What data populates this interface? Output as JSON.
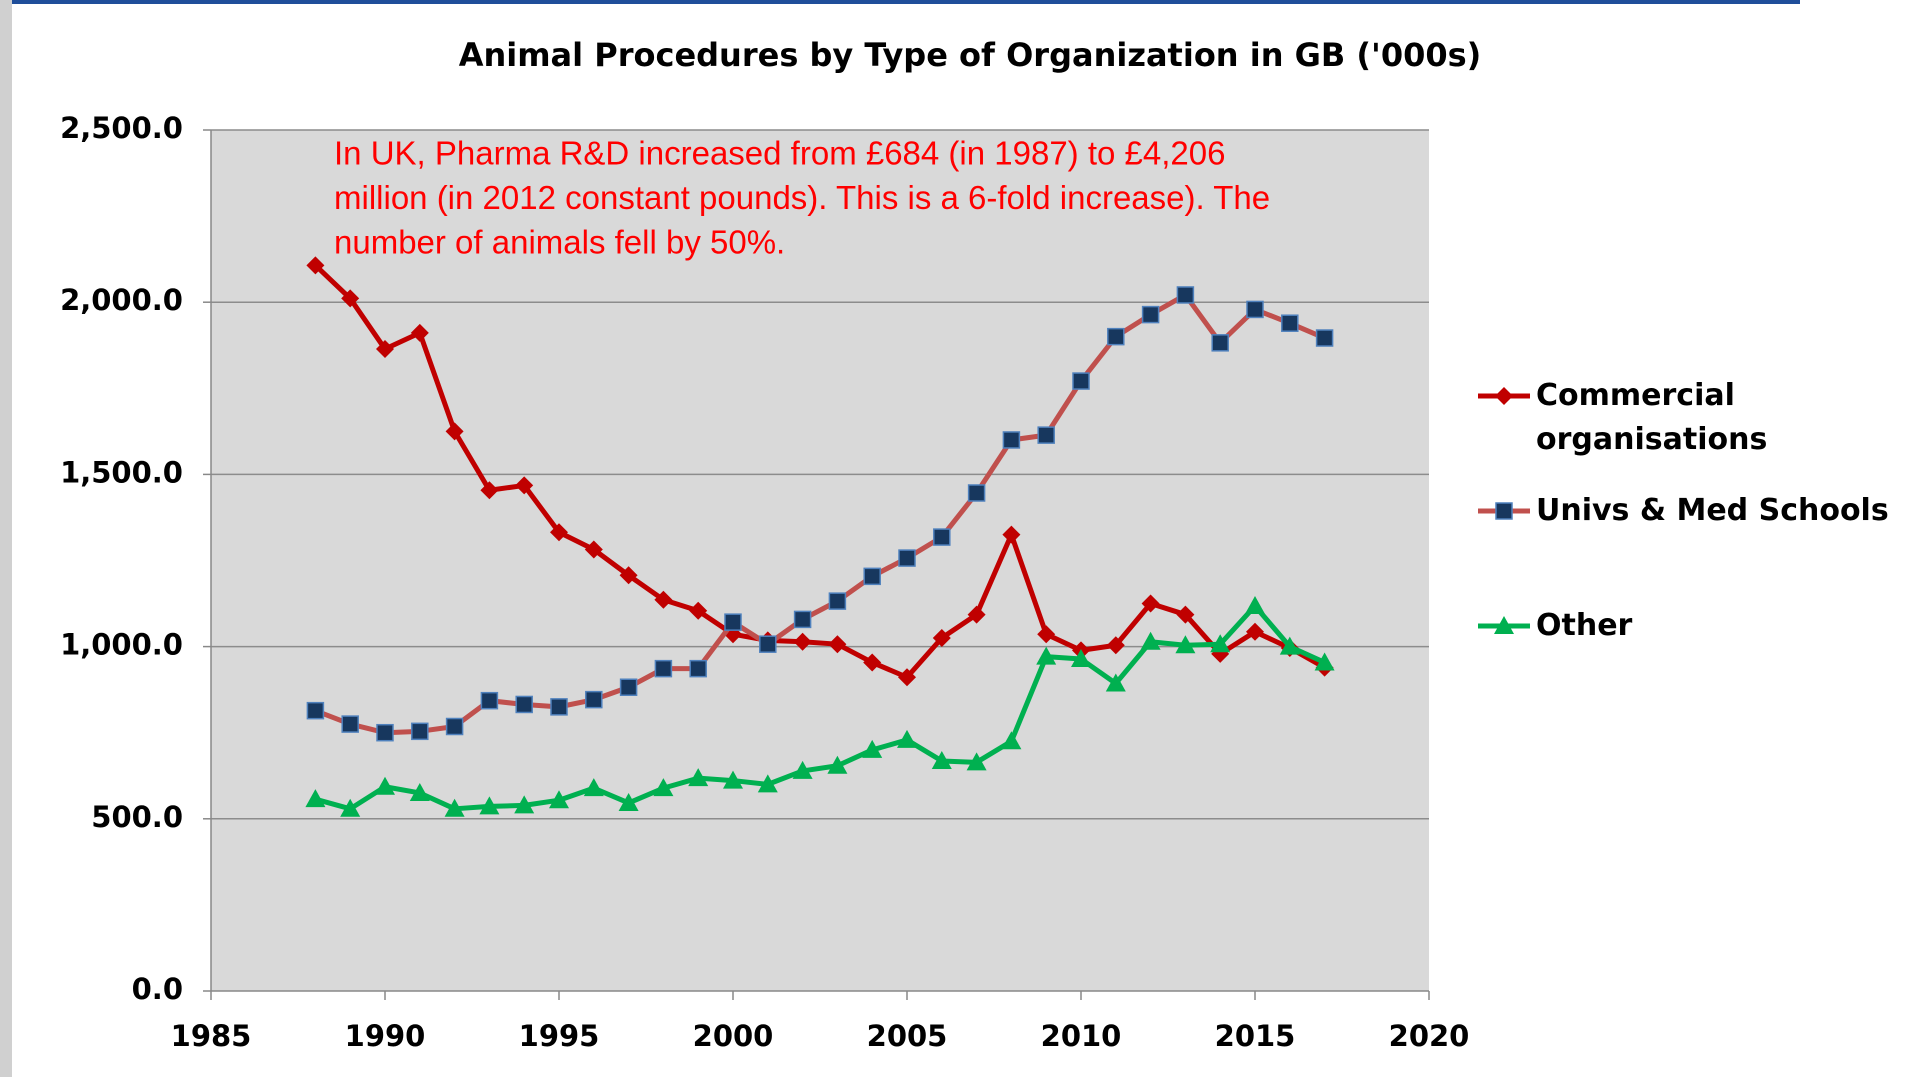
{
  "chart_data": {
    "type": "line",
    "title": "Animal Procedures by Type of Organization in GB ('000s)",
    "annotation": [
      "In UK, Pharma R&D increased from £684 (in 1987) to  £4,206",
      "million (in 2012 constant pounds). This is a 6-fold increase). The",
      "number of animals fell by 50%."
    ],
    "x": [
      1988,
      1989,
      1990,
      1991,
      1992,
      1993,
      1994,
      1995,
      1996,
      1997,
      1998,
      1999,
      2000,
      2001,
      2002,
      2003,
      2004,
      2005,
      2006,
      2007,
      2008,
      2009,
      2010,
      2011,
      2012,
      2013,
      2014,
      2015,
      2016,
      2017
    ],
    "series": [
      {
        "name": "Commercial organisations",
        "color": "#c00000",
        "marker": "diamond",
        "marker_color": "#c00000",
        "values": [
          2107,
          2011,
          1864,
          1911,
          1625,
          1454,
          1468,
          1332,
          1282,
          1207,
          1136,
          1104,
          1036,
          1018,
          1014,
          1007,
          954,
          911,
          1025,
          1093,
          1325,
          1036,
          989,
          1004,
          1125,
          1093,
          979,
          1043,
          996,
          939
        ]
      },
      {
        "name": "Univs & Med Schools",
        "color": "#c0504d",
        "marker": "square",
        "marker_color": "#17375e",
        "values": [
          814,
          775,
          750,
          754,
          768,
          843,
          832,
          825,
          846,
          882,
          936,
          936,
          1071,
          1007,
          1079,
          1132,
          1204,
          1257,
          1318,
          1446,
          1600,
          1614,
          1771,
          1900,
          1964,
          2021,
          1882,
          1979,
          1939,
          1896
        ]
      },
      {
        "name": "Other",
        "color": "#00b050",
        "marker": "triangle",
        "marker_color": "#00b050",
        "values": [
          557,
          529,
          593,
          575,
          529,
          536,
          539,
          554,
          589,
          546,
          589,
          618,
          611,
          600,
          639,
          654,
          700,
          729,
          668,
          664,
          725,
          971,
          964,
          893,
          1014,
          1004,
          1007,
          1118,
          1000,
          954
        ]
      }
    ],
    "xlim": [
      1985,
      2020
    ],
    "xticks": [
      1985,
      1990,
      1995,
      2000,
      2005,
      2010,
      2015,
      2020
    ],
    "ylim": [
      0,
      2500
    ],
    "yticks": [
      {
        "value": 0,
        "label": "0.0"
      },
      {
        "value": 500,
        "label": "500.0"
      },
      {
        "value": 1000,
        "label": "1,000.0"
      },
      {
        "value": 1500,
        "label": "1,500.0"
      },
      {
        "value": 2000,
        "label": "2,000.0"
      },
      {
        "value": 2500,
        "label": "2,500.0"
      }
    ],
    "grid": true,
    "legend": "right"
  }
}
